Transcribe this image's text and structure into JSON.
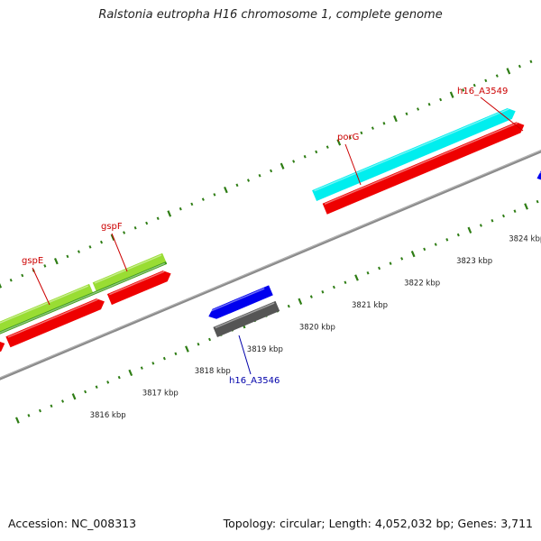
{
  "map": {
    "title": "Ralstonia eutropha H16 chromosome 1, complete genome",
    "accession": "Accession: NC_008313",
    "summary": "Topology: circular; Length: 4,052,032 bp; Genes: 3,711",
    "colors": {
      "backbone": "#8a8a8a",
      "tick": "#2e7d14",
      "gene_red": "#ee0000",
      "gene_blue": "#0000ee",
      "gene_gray": "#888888",
      "gene_darkgray": "#555555",
      "gene_cyan": "#00eeee",
      "gene_green": "#3a9a1a",
      "gene_lightgreen": "#99dd33",
      "label_red": "#cc0000",
      "label_blue": "#0000aa",
      "kbp_text": "#222222"
    },
    "scale_labels": [
      "3816 kbp",
      "3817 kbp",
      "3818 kbp",
      "3819 kbp",
      "3820 kbp",
      "3821 kbp",
      "3822 kbp",
      "3823 kbp",
      "3824 kbp"
    ],
    "gene_labels": [
      {
        "id": "gspE",
        "text": "gspE",
        "color": "label_red"
      },
      {
        "id": "gspF",
        "text": "gspF",
        "color": "label_red"
      },
      {
        "id": "porG",
        "text": "porG",
        "color": "label_red"
      },
      {
        "id": "h16_A3549",
        "text": "h16_A3549",
        "color": "label_red"
      },
      {
        "id": "h16_A3546",
        "text": "h16_A3546",
        "color": "label_blue"
      }
    ]
  }
}
